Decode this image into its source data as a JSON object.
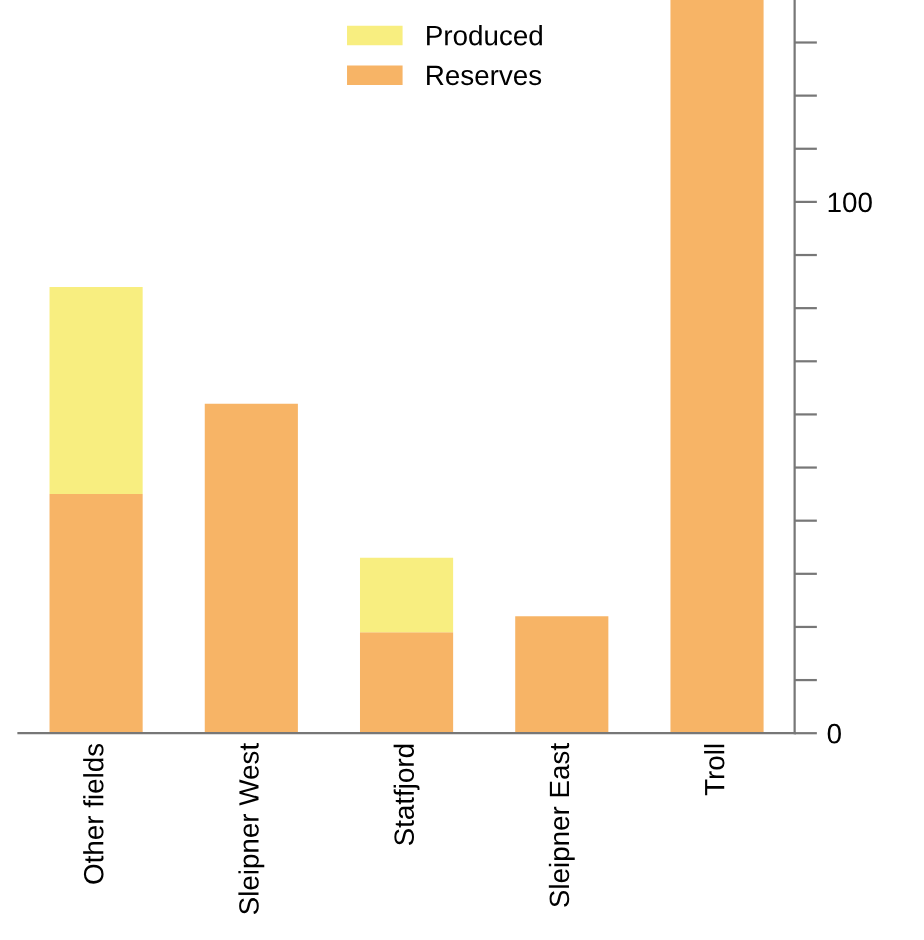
{
  "chart_data": {
    "type": "bar",
    "stacked": true,
    "categories": [
      "Other fields",
      "Sleipner West",
      "Statfjord",
      "Sleipner East",
      "Troll"
    ],
    "series": [
      {
        "name": "Reserves",
        "color": "#f7b466",
        "values": [
          45,
          62,
          19,
          22,
          138
        ]
      },
      {
        "name": "Produced",
        "color": "#f8ee80",
        "values": [
          39,
          0,
          14,
          0,
          0
        ]
      }
    ],
    "ylim": [
      0,
      138
    ],
    "yticks": [
      0,
      {
        "value": 10,
        "label": null
      },
      {
        "value": 20,
        "label": null
      },
      {
        "value": 30,
        "label": null
      },
      {
        "value": 40,
        "label": null
      },
      {
        "value": 50,
        "label": null
      },
      {
        "value": 60,
        "label": null
      },
      {
        "value": 70,
        "label": null
      },
      {
        "value": 80,
        "label": null
      },
      {
        "value": 90,
        "label": null
      },
      100,
      {
        "value": 110,
        "label": null
      },
      {
        "value": 120,
        "label": null
      },
      {
        "value": 130,
        "label": null
      }
    ],
    "grid": false,
    "legend": "top"
  }
}
